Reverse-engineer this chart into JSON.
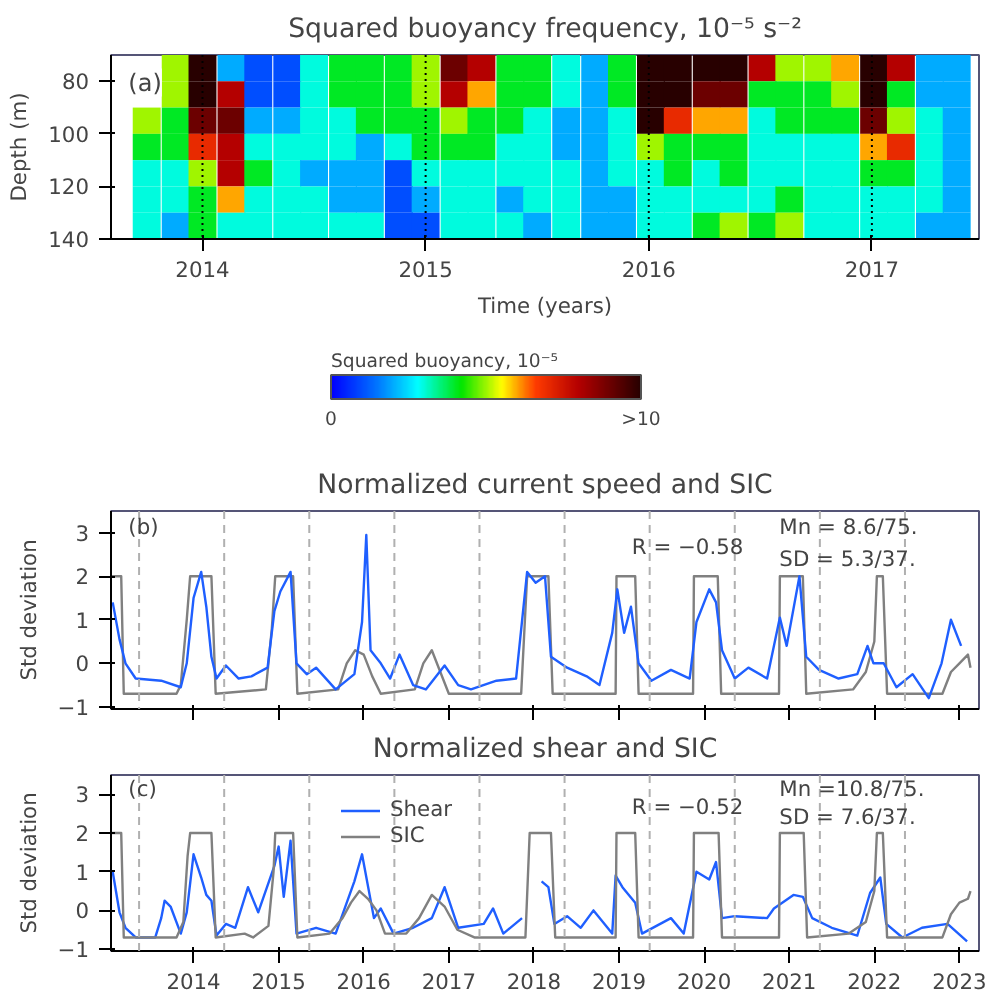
{
  "chart_data": [
    {
      "type": "heatmap",
      "title": "Squared buoyancy frequency, 10⁻⁵ s⁻²",
      "xlabel": "Time (years)",
      "ylabel": "Depth (m)",
      "clabel": "Squared buoyancy, 10⁻⁵",
      "x": [
        2013.75,
        2013.88,
        2014.0,
        2014.13,
        2014.25,
        2014.38,
        2014.5,
        2014.63,
        2014.75,
        2014.88,
        2015.0,
        2015.13,
        2015.25,
        2015.38,
        2015.5,
        2015.63,
        2015.76,
        2015.88,
        2016.01,
        2016.13,
        2016.26,
        2016.38,
        2016.51,
        2016.63,
        2016.76,
        2016.88,
        2017.01,
        2017.13,
        2017.26,
        2017.38
      ],
      "cells": [
        [
          null,
          5,
          10,
          2,
          1,
          1,
          3,
          4,
          4,
          4,
          5,
          9,
          8,
          4,
          4,
          3,
          2,
          4,
          10,
          10,
          10,
          10,
          8,
          5,
          5,
          6,
          10,
          8,
          2,
          2
        ],
        [
          null,
          5,
          10,
          8,
          1,
          1,
          3,
          4,
          4,
          4,
          5,
          8,
          6,
          4,
          4,
          3,
          2,
          4,
          10,
          10,
          9,
          9,
          4,
          4,
          4,
          5,
          10,
          4,
          2,
          2
        ],
        [
          5,
          4,
          9,
          9,
          2,
          2,
          3,
          3,
          4,
          4,
          4,
          5,
          4,
          4,
          3,
          2,
          2,
          3,
          10,
          7,
          6,
          6,
          3,
          4,
          4,
          4,
          9,
          5,
          3,
          2
        ],
        [
          4,
          4,
          7,
          8,
          3,
          3,
          3,
          3,
          2,
          3,
          4,
          4,
          4,
          3,
          3,
          2,
          2,
          3,
          5,
          4,
          4,
          4,
          3,
          3,
          3,
          3,
          6,
          7,
          3,
          2
        ],
        [
          3,
          3,
          5,
          8,
          4,
          3,
          2,
          2,
          2,
          1,
          3,
          3,
          3,
          3,
          3,
          3,
          2,
          3,
          3,
          4,
          3,
          4,
          3,
          3,
          3,
          3,
          4,
          4,
          3,
          2
        ],
        [
          3,
          3,
          4,
          6,
          3,
          3,
          3,
          2,
          2,
          1,
          2,
          3,
          3,
          2,
          3,
          3,
          2,
          2,
          3,
          3,
          3,
          3,
          3,
          4,
          3,
          3,
          3,
          3,
          3,
          2
        ],
        [
          3,
          2,
          4,
          3,
          3,
          3,
          3,
          3,
          3,
          1,
          1,
          3,
          3,
          3,
          2,
          3,
          2,
          2,
          3,
          3,
          4,
          5,
          4,
          5,
          3,
          3,
          3,
          3,
          2,
          2
        ]
      ],
      "clim": [
        0,
        10
      ],
      "cticks": [
        0,
        {
          "value": 10,
          "label": ">10"
        }
      ],
      "xlim": [
        2013.59,
        2017.48
      ],
      "xticks": [
        2014,
        2015,
        2016,
        2017
      ],
      "ylim": [
        140,
        70
      ],
      "yticks": [
        80,
        100,
        120,
        140
      ],
      "ref_lines": [
        {
          "axis": "x",
          "value": 2014,
          "line_style": "dotted",
          "color": "#000000"
        },
        {
          "axis": "x",
          "value": 2015,
          "line_style": "dotted",
          "color": "#000000"
        },
        {
          "axis": "x",
          "value": 2016,
          "line_style": "dotted",
          "color": "#000000"
        },
        {
          "axis": "x",
          "value": 2017,
          "line_style": "dotted",
          "color": "#000000"
        }
      ],
      "annotations": [
        "(a)"
      ]
    },
    {
      "type": "line",
      "title": "Normalized current speed and SIC",
      "ylabel": "Std deviation",
      "xlim": [
        2013.03,
        2023.23
      ],
      "xticks": [
        2014,
        2015,
        2016,
        2017,
        2018,
        2019,
        2020,
        2021,
        2022,
        2023
      ],
      "ylim": [
        -1.05,
        3.5
      ],
      "yticks": [
        -1,
        0,
        1,
        2,
        3
      ],
      "tick_labels": "y",
      "series": [
        {
          "color": "#808080",
          "x": [
            2013.03,
            2013.15,
            2013.18,
            2013.8,
            2013.85,
            2013.92,
            2013.96,
            2014.21,
            2014.26,
            2014.85,
            2014.92,
            2014.96,
            2015.17,
            2015.22,
            2015.7,
            2015.8,
            2015.9,
            2016.0,
            2016.1,
            2016.2,
            2016.6,
            2016.7,
            2016.8,
            2016.9,
            2017.0,
            2017.85,
            2017.92,
            2018.17,
            2018.22,
            2018.96,
            2018.97,
            2019.19,
            2019.23,
            2019.87,
            2019.88,
            2020.16,
            2020.2,
            2020.88,
            2020.89,
            2021.16,
            2021.2,
            2021.75,
            2021.9,
            2022.0,
            2022.03,
            2022.1,
            2022.15,
            2022.8,
            2022.9,
            2023.0,
            2023.1,
            2023.13
          ],
          "values": [
            2,
            2,
            -0.7,
            -0.7,
            -0.5,
            1.0,
            2,
            2,
            -0.7,
            -0.6,
            0.8,
            2,
            2,
            -0.7,
            -0.6,
            0,
            0.3,
            0.2,
            -0.3,
            -0.7,
            -0.6,
            0,
            0.3,
            -0.2,
            -0.7,
            -0.7,
            2,
            2,
            -0.7,
            -0.7,
            2,
            2,
            -0.7,
            -0.7,
            2,
            2,
            -0.7,
            -0.7,
            2,
            2,
            -0.7,
            -0.6,
            -0.2,
            0.5,
            2,
            2,
            -0.7,
            -0.7,
            -0.2,
            0,
            0.2,
            -0.1
          ]
        },
        {
          "color": "#1f5fff",
          "x": [
            2013.05,
            2013.13,
            2013.2,
            2013.32,
            2013.62,
            2013.85,
            2013.92,
            2014.0,
            2014.09,
            2014.15,
            2014.21,
            2014.27,
            2014.38,
            2014.53,
            2014.68,
            2014.87,
            2014.95,
            2015.02,
            2015.14,
            2015.21,
            2015.33,
            2015.44,
            2015.67,
            2015.89,
            2015.98,
            2016.03,
            2016.08,
            2016.2,
            2016.31,
            2016.42,
            2016.58,
            2016.73,
            2016.95,
            2017.11,
            2017.26,
            2017.56,
            2017.79,
            2017.92,
            2018.02,
            2018.13,
            2018.2,
            2018.39,
            2018.62,
            2018.77,
            2018.92,
            2018.98,
            2019.06,
            2019.14,
            2019.23,
            2019.38,
            2019.61,
            2019.83,
            2019.91,
            2020.06,
            2020.14,
            2020.21,
            2020.36,
            2020.52,
            2020.74,
            2020.89,
            2020.97,
            2021.12,
            2021.2,
            2021.35,
            2021.58,
            2021.8,
            2021.92,
            2021.99,
            2022.11,
            2022.26,
            2022.45,
            2022.64,
            2022.79,
            2022.9,
            2023.02
          ],
          "values": [
            1.4,
            0.55,
            0,
            -0.35,
            -0.4,
            -0.55,
            0,
            1.5,
            2.1,
            1.3,
            0.15,
            -0.35,
            -0.05,
            -0.35,
            -0.3,
            -0.1,
            1.2,
            1.65,
            2.1,
            0,
            -0.25,
            -0.1,
            -0.6,
            -0.25,
            0.95,
            2.95,
            0.3,
            0,
            -0.35,
            0.2,
            -0.5,
            -0.6,
            -0.05,
            -0.5,
            -0.6,
            -0.4,
            -0.35,
            2.1,
            1.85,
            2.0,
            0.15,
            -0.1,
            -0.3,
            -0.5,
            0.7,
            1.7,
            0.7,
            1.3,
            0,
            -0.4,
            -0.15,
            -0.35,
            0.95,
            1.7,
            1.4,
            0.3,
            -0.35,
            -0.1,
            -0.35,
            1.05,
            0.4,
            2.0,
            0.15,
            -0.15,
            -0.35,
            -0.25,
            0.4,
            0,
            0,
            -0.55,
            -0.25,
            -0.8,
            0,
            1.0,
            0.4
          ]
        }
      ],
      "ref_lines": [
        {
          "axis": "x",
          "value": 2013.36,
          "line_style": "dashed",
          "color": "#b0b0b0"
        },
        {
          "axis": "x",
          "value": 2014.36,
          "line_style": "dashed",
          "color": "#b0b0b0"
        },
        {
          "axis": "x",
          "value": 2015.36,
          "line_style": "dashed",
          "color": "#b0b0b0"
        },
        {
          "axis": "x",
          "value": 2016.36,
          "line_style": "dashed",
          "color": "#b0b0b0"
        },
        {
          "axis": "x",
          "value": 2017.36,
          "line_style": "dashed",
          "color": "#b0b0b0"
        },
        {
          "axis": "x",
          "value": 2018.36,
          "line_style": "dashed",
          "color": "#b0b0b0"
        },
        {
          "axis": "x",
          "value": 2019.36,
          "line_style": "dashed",
          "color": "#b0b0b0"
        },
        {
          "axis": "x",
          "value": 2020.36,
          "line_style": "dashed",
          "color": "#b0b0b0"
        },
        {
          "axis": "x",
          "value": 2021.36,
          "line_style": "dashed",
          "color": "#b0b0b0"
        },
        {
          "axis": "x",
          "value": 2022.36,
          "line_style": "dashed",
          "color": "#b0b0b0"
        }
      ],
      "annotations": [
        "(b)",
        "R = −0.58",
        "Mn = 8.6/75.",
        "SD = 5.3/37."
      ]
    },
    {
      "type": "line",
      "title": "Normalized shear and SIC",
      "ylabel": "Std deviation",
      "xlim": [
        2013.03,
        2023.23
      ],
      "xticks": [
        2014,
        2015,
        2016,
        2017,
        2018,
        2019,
        2020,
        2021,
        2022,
        2023
      ],
      "ylim": [
        -1.05,
        3.5
      ],
      "yticks": [
        -1,
        0,
        1,
        2,
        3
      ],
      "legend": "top left",
      "series": [
        {
          "name": "Shear",
          "color": "#1f5fff",
          "x": [
            2013.05,
            2013.13,
            2013.2,
            2013.32,
            2013.55,
            2013.62,
            2013.66,
            2013.73,
            2013.85,
            2013.92,
            2014.0,
            2014.09,
            2014.15,
            2014.21,
            2014.27,
            2014.38,
            2014.49,
            2014.64,
            2014.76,
            2014.95,
            2015.0,
            2015.06,
            2015.14,
            2015.21,
            2015.44,
            2015.67,
            2015.89,
            2015.98,
            2016.12,
            2016.2,
            2016.35,
            2016.58,
            2016.8,
            2016.95,
            2017.11,
            2017.41,
            2017.52,
            2017.64,
            2017.86,
            2017.98,
            2018.05,
            2018.09,
            2018.17,
            2018.24,
            2018.39,
            2018.55,
            2018.7,
            2018.92,
            2018.96,
            2019.04,
            2019.19,
            2019.27,
            2019.61,
            2019.76,
            2019.91,
            2020.06,
            2020.14,
            2020.21,
            2020.36,
            2020.74,
            2020.82,
            2021.05,
            2021.16,
            2021.27,
            2021.5,
            2021.8,
            2021.95,
            2022.07,
            2022.14,
            2022.33,
            2022.56,
            2022.86,
            2023.09
          ],
          "values": [
            1.0,
            -0.05,
            -0.45,
            -0.7,
            -0.7,
            -0.2,
            0.25,
            0.1,
            -0.6,
            -0.05,
            1.45,
            0.85,
            0.4,
            0.25,
            -0.65,
            -0.35,
            -0.45,
            0.6,
            -0.05,
            1.15,
            1.65,
            0.35,
            1.8,
            -0.6,
            -0.45,
            -0.6,
            0.75,
            1.45,
            -0.2,
            0.05,
            -0.6,
            -0.45,
            -0.2,
            0.6,
            -0.45,
            -0.35,
            0.05,
            -0.6,
            -0.2,
            null,
            null,
            0.75,
            0.6,
            -0.35,
            -0.15,
            -0.45,
            0,
            -0.6,
            0.9,
            0.6,
            0.2,
            -0.6,
            -0.2,
            -0.6,
            1.0,
            0.8,
            1.25,
            -0.2,
            -0.15,
            -0.2,
            0.05,
            0.4,
            0.35,
            -0.2,
            -0.45,
            -0.65,
            0.45,
            0.85,
            -0.35,
            -0.7,
            -0.45,
            -0.35,
            -0.8
          ]
        },
        {
          "name": "SIC",
          "color": "#808080",
          "x": [
            2013.03,
            2013.15,
            2013.18,
            2013.8,
            2013.88,
            2013.93,
            2013.96,
            2014.21,
            2014.26,
            2014.6,
            2014.7,
            2014.88,
            2014.94,
            2014.96,
            2015.17,
            2015.22,
            2015.6,
            2015.75,
            2015.85,
            2015.95,
            2016.05,
            2016.15,
            2016.25,
            2016.5,
            2016.65,
            2016.8,
            2016.95,
            2017.1,
            2017.3,
            2017.9,
            2017.95,
            2018.2,
            2018.25,
            2018.96,
            2018.97,
            2019.19,
            2019.23,
            2019.87,
            2019.88,
            2020.17,
            2020.21,
            2020.88,
            2020.89,
            2021.17,
            2021.21,
            2021.7,
            2021.9,
            2022.0,
            2022.03,
            2022.1,
            2022.15,
            2022.8,
            2022.9,
            2023.0,
            2023.1,
            2023.13
          ],
          "values": [
            2,
            2,
            -0.7,
            -0.7,
            -0.3,
            1.4,
            2,
            2,
            -0.7,
            -0.6,
            -0.7,
            -0.4,
            1.0,
            2,
            2,
            -0.7,
            -0.6,
            -0.2,
            0.2,
            0.5,
            0.3,
            0,
            -0.6,
            -0.6,
            -0.2,
            0.4,
            0.1,
            -0.5,
            -0.7,
            -0.7,
            2,
            2,
            -0.7,
            -0.7,
            2,
            2,
            -0.7,
            -0.7,
            2,
            2,
            -0.7,
            -0.7,
            2,
            2,
            -0.7,
            -0.6,
            -0.3,
            0.5,
            2,
            2,
            -0.7,
            -0.7,
            -0.1,
            0.2,
            0.3,
            0.5
          ]
        }
      ],
      "ref_lines": [
        {
          "axis": "x",
          "value": 2013.36,
          "line_style": "dashed",
          "color": "#b0b0b0"
        },
        {
          "axis": "x",
          "value": 2014.36,
          "line_style": "dashed",
          "color": "#b0b0b0"
        },
        {
          "axis": "x",
          "value": 2015.36,
          "line_style": "dashed",
          "color": "#b0b0b0"
        },
        {
          "axis": "x",
          "value": 2016.36,
          "line_style": "dashed",
          "color": "#b0b0b0"
        },
        {
          "axis": "x",
          "value": 2017.36,
          "line_style": "dashed",
          "color": "#b0b0b0"
        },
        {
          "axis": "x",
          "value": 2018.36,
          "line_style": "dashed",
          "color": "#b0b0b0"
        },
        {
          "axis": "x",
          "value": 2019.36,
          "line_style": "dashed",
          "color": "#b0b0b0"
        },
        {
          "axis": "x",
          "value": 2020.36,
          "line_style": "dashed",
          "color": "#b0b0b0"
        },
        {
          "axis": "x",
          "value": 2021.36,
          "line_style": "dashed",
          "color": "#b0b0b0"
        },
        {
          "axis": "x",
          "value": 2022.36,
          "line_style": "dashed",
          "color": "#b0b0b0"
        }
      ],
      "annotations": [
        "(c)",
        "R = −0.52",
        "Mn =10.8/75.",
        "SD = 7.6/37."
      ]
    }
  ]
}
